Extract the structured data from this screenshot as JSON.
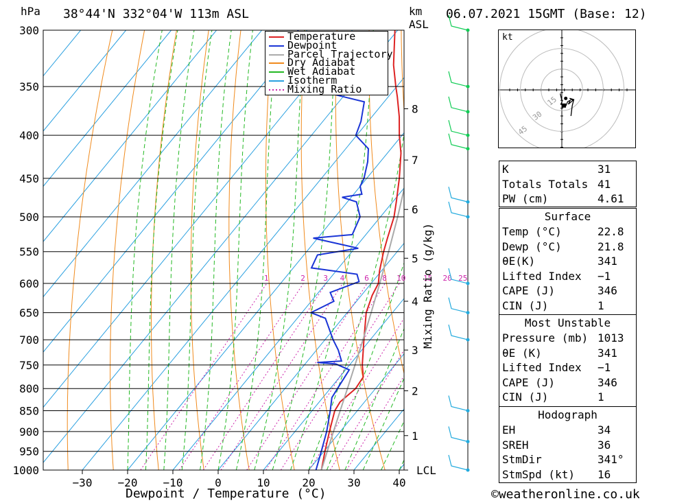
{
  "header": {
    "unit_left": "hPa",
    "location": "38°44'N 332°04'W 113m ASL",
    "km_label": "km",
    "asl_label": "ASL",
    "datetime": "06.07.2021 15GMT (Base: 12)"
  },
  "footer": {
    "copyright": "©weatheronline.co.uk"
  },
  "chart_data": {
    "type": "skew-t",
    "xlabel": "Dewpoint / Temperature (°C)",
    "ylabel_left": "hPa",
    "ylabel_right": "Mixing Ratio (g/kg)",
    "pressure_levels": [
      300,
      350,
      400,
      450,
      500,
      550,
      600,
      650,
      700,
      750,
      800,
      850,
      900,
      950,
      1000
    ],
    "pressure_labels": [
      "300",
      "350",
      "400",
      "450",
      "500",
      "550",
      "600",
      "650",
      "700",
      "750",
      "800",
      "850",
      "900",
      "950",
      "1000"
    ],
    "temperature_ticks": [
      -30,
      -20,
      -10,
      0,
      10,
      20,
      30,
      40
    ],
    "temperature_tick_labels": [
      "−30",
      "−20",
      "−10",
      "0",
      "10",
      "20",
      "30",
      "40"
    ],
    "xlim": [
      -40,
      40
    ],
    "ylim": [
      1000,
      300
    ],
    "km_ticks": [
      {
        "km": 8,
        "p": 372,
        "label": "8"
      },
      {
        "km": 7,
        "p": 428,
        "label": "7"
      },
      {
        "km": 6,
        "p": 490,
        "label": "6"
      },
      {
        "km": 5,
        "p": 560,
        "label": "5"
      },
      {
        "km": 4,
        "p": 630,
        "label": "4"
      },
      {
        "km": 3,
        "p": 720,
        "label": "3"
      },
      {
        "km": 2,
        "p": 805,
        "label": "2"
      },
      {
        "km": 1,
        "p": 910,
        "label": "1"
      },
      {
        "km": 0,
        "p": 1000,
        "label": "LCL"
      }
    ],
    "mixing_ratio_labels": [
      "1",
      "2",
      "3",
      "4",
      "6",
      "8",
      "10",
      "15",
      "20",
      "25"
    ],
    "legend": [
      "Temperature",
      "Dewpoint",
      "Parcel Trajectory",
      "Dry Adiabat",
      "Wet Adiabat",
      "Isotherm",
      "Mixing Ratio"
    ],
    "series": [
      {
        "name": "Temperature",
        "color": "#dd2222",
        "points": [
          [
            1000,
            22.8
          ],
          [
            950,
            20.2
          ],
          [
            900,
            17.6
          ],
          [
            850,
            15.0
          ],
          [
            830,
            14.6
          ],
          [
            800,
            15.6
          ],
          [
            775,
            15.2
          ],
          [
            750,
            12.8
          ],
          [
            700,
            8.6
          ],
          [
            650,
            4.2
          ],
          [
            620,
            2.4
          ],
          [
            600,
            1.6
          ],
          [
            580,
            -0.4
          ],
          [
            550,
            -3.0
          ],
          [
            530,
            -4.6
          ],
          [
            500,
            -7.0
          ],
          [
            480,
            -9.2
          ],
          [
            450,
            -12.8
          ],
          [
            420,
            -17.0
          ],
          [
            400,
            -20.6
          ],
          [
            380,
            -24.0
          ],
          [
            360,
            -28.0
          ],
          [
            350,
            -30.2
          ],
          [
            330,
            -34.6
          ],
          [
            300,
            -40.6
          ]
        ]
      },
      {
        "name": "Dewpoint",
        "color": "#1a35d6",
        "points": [
          [
            1000,
            21.6
          ],
          [
            950,
            19.4
          ],
          [
            900,
            17.0
          ],
          [
            850,
            14.0
          ],
          [
            820,
            12.0
          ],
          [
            800,
            11.6
          ],
          [
            760,
            10.8
          ],
          [
            748,
            6.8
          ],
          [
            745,
            2.4
          ],
          [
            742,
            7.5
          ],
          [
            720,
            4.8
          ],
          [
            700,
            1.8
          ],
          [
            660,
            -3.8
          ],
          [
            650,
            -8.0
          ],
          [
            630,
            -5.0
          ],
          [
            615,
            -7.4
          ],
          [
            597,
            -3.0
          ],
          [
            585,
            -4.8
          ],
          [
            575,
            -16.0
          ],
          [
            555,
            -17.0
          ],
          [
            545,
            -9.2
          ],
          [
            530,
            -21.0
          ],
          [
            525,
            -13.0
          ],
          [
            500,
            -14.5
          ],
          [
            480,
            -18.0
          ],
          [
            474,
            -22.0
          ],
          [
            470,
            -18.2
          ],
          [
            460,
            -20.0
          ],
          [
            450,
            -20.6
          ],
          [
            430,
            -22.8
          ],
          [
            415,
            -25.0
          ],
          [
            400,
            -30.2
          ],
          [
            385,
            -31.6
          ],
          [
            365,
            -34.4
          ],
          [
            348,
            -53.2
          ],
          [
            340,
            -55.8
          ],
          [
            320,
            -58.0
          ],
          [
            300,
            -62.0
          ]
        ]
      },
      {
        "name": "Parcel Trajectory",
        "color": "#aaaaaa",
        "points": [
          [
            1000,
            22.8
          ],
          [
            950,
            20.7
          ],
          [
            900,
            18.5
          ],
          [
            850,
            16.2
          ],
          [
            800,
            13.8
          ],
          [
            750,
            11.2
          ],
          [
            700,
            8.4
          ],
          [
            650,
            5.3
          ],
          [
            600,
            1.9
          ],
          [
            550,
            -1.9
          ],
          [
            500,
            -6.2
          ],
          [
            450,
            -11.2
          ],
          [
            400,
            -17.2
          ],
          [
            350,
            -24.5
          ],
          [
            300,
            -33.5
          ]
        ]
      }
    ],
    "hodograph": {
      "unit": "kt",
      "rings": [
        15,
        30,
        45
      ],
      "ring_labels": [
        "15",
        "30",
        "45"
      ],
      "points_uv": [
        [
          -1.2,
          -2.8
        ],
        [
          0.2,
          -9.0
        ],
        [
          -0.8,
          -11.0
        ],
        [
          3.2,
          -12.0
        ],
        [
          4.5,
          -9.0
        ],
        [
          6.5,
          -8.0
        ],
        [
          5.0,
          -11.0
        ],
        [
          8.5,
          -8.0
        ],
        [
          6.0,
          -6.5
        ],
        [
          9.2,
          -7.4
        ],
        [
          8.0,
          -12.0
        ],
        [
          7.0,
          -20.0
        ]
      ],
      "storm_motion_uv": [
        1.6,
        -12.0
      ],
      "mean_wind_uv": [
        3.0,
        -6.5
      ]
    },
    "wind_barbs": [
      {
        "p": 300,
        "label": "300"
      },
      {
        "p": 350,
        "label": "350"
      },
      {
        "p": 375,
        "label": "375"
      },
      {
        "p": 400,
        "label": "400"
      },
      {
        "p": 415,
        "label": "415"
      },
      {
        "p": 480,
        "label": "480"
      },
      {
        "p": 500,
        "label": "500"
      },
      {
        "p": 600,
        "label": "600"
      },
      {
        "p": 650,
        "label": "650"
      },
      {
        "p": 700,
        "label": "700"
      },
      {
        "p": 850,
        "label": "850"
      },
      {
        "p": 925,
        "label": "925"
      },
      {
        "p": 1000,
        "label": "1000"
      }
    ]
  },
  "indices_table": {
    "rows": [
      {
        "label": "K",
        "value": "31"
      },
      {
        "label": "Totals Totals",
        "value": "41"
      },
      {
        "label": "PW (cm)",
        "value": "4.61"
      }
    ]
  },
  "surface_table": {
    "title": "Surface",
    "rows": [
      {
        "label": "Temp (°C)",
        "value": "22.8"
      },
      {
        "label": "Dewp (°C)",
        "value": "21.8"
      },
      {
        "label": "θE(K)",
        "value": "341"
      },
      {
        "label": "Lifted Index",
        "value": "−1"
      },
      {
        "label": "CAPE (J)",
        "value": "346"
      },
      {
        "label": "CIN (J)",
        "value": "1"
      }
    ]
  },
  "most_unstable_table": {
    "title": "Most Unstable",
    "rows": [
      {
        "label": "Pressure (mb)",
        "value": "1013"
      },
      {
        "label": "θE (K)",
        "value": "341"
      },
      {
        "label": "Lifted Index",
        "value": "−1"
      },
      {
        "label": "CAPE (J)",
        "value": "346"
      },
      {
        "label": "CIN (J)",
        "value": "1"
      }
    ]
  },
  "hodograph_table": {
    "title": "Hodograph",
    "rows": [
      {
        "label": "EH",
        "value": "34"
      },
      {
        "label": "SREH",
        "value": "36"
      },
      {
        "label": "StmDir",
        "value": "341°"
      },
      {
        "label": "StmSpd (kt)",
        "value": "16"
      }
    ]
  }
}
